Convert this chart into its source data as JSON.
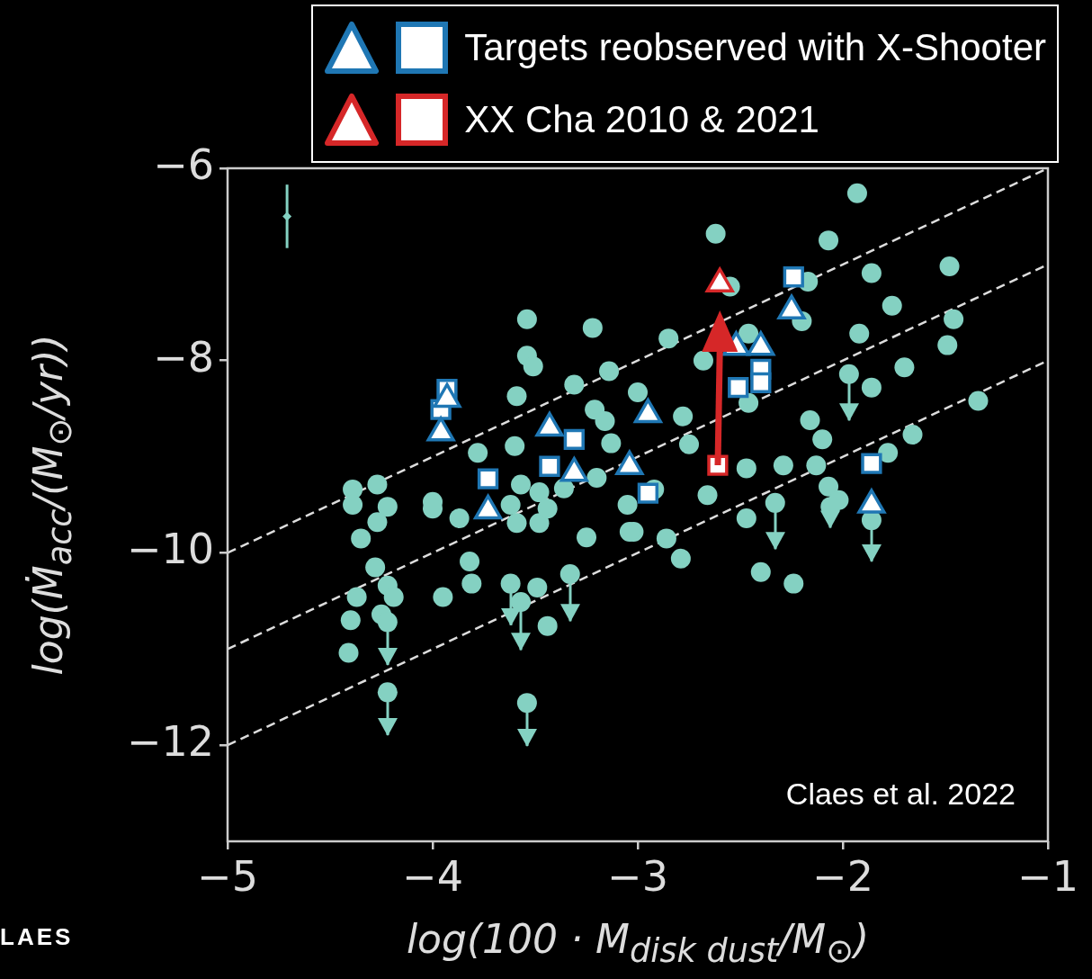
{
  "chart_data": {
    "type": "scatter",
    "xlabel": "log(100 · M$_{disk dust}$/M$_{⊙}$)",
    "ylabel": "log(Ṁ$_{acc}$/(M$_{⊙}$/yr))",
    "xlim": [
      -5,
      -1
    ],
    "xticks": [
      -5,
      -4,
      -3,
      -2,
      -1
    ],
    "ylim": [
      -13,
      -6
    ],
    "yticks": [
      -12,
      -10,
      -8,
      -6
    ],
    "grid": false,
    "legend": "top",
    "annotations": [
      "Claes et al. 2022",
      "LAES"
    ],
    "series": [
      {
        "type": "line",
        "color": "#dddddd",
        "line_style": "dashed",
        "x": [
          -5,
          -1
        ],
        "values": [
          -10,
          -6
        ]
      },
      {
        "type": "line",
        "color": "#dddddd",
        "line_style": "dashed",
        "x": [
          -5,
          -1
        ],
        "values": [
          -11,
          -7
        ]
      },
      {
        "type": "line",
        "color": "#dddddd",
        "line_style": "dashed",
        "x": [
          -5,
          -1
        ],
        "values": [
          -12,
          -8
        ]
      },
      {
        "color": "#84d1c2",
        "marker": "circle",
        "x": [
          -1.93,
          -2.62,
          -2.07,
          -1.48,
          -1.86,
          -2.17,
          -2.55,
          -1.76,
          -1.46,
          -1.92,
          -1.49,
          -2.2,
          -2.46,
          -2.68,
          -2.46,
          -1.7,
          -1.86,
          -1.34,
          -1.66,
          -2.16,
          -2.1,
          -1.78,
          -2.47,
          -2.29,
          -2.13,
          -2.07,
          -2.02,
          -2.66,
          -2.47,
          -3.02,
          -2.86,
          -2.79,
          -2.4,
          -2.24,
          -2.78,
          -2.75,
          -2.85,
          -3.0,
          -2.92,
          -3.54,
          -3.22,
          -3.54,
          -3.51,
          -3.31,
          -3.14,
          -3.59,
          -3.21,
          -3.16,
          -3.13,
          -3.78,
          -3.6,
          -4.39,
          -4.27,
          -3.57,
          -3.48,
          -3.36,
          -3.2,
          -4.0,
          -4.39,
          -4.22,
          -4.27,
          -4.35,
          -4.0,
          -3.87,
          -3.62,
          -3.59,
          -3.48,
          -3.44,
          -3.25,
          -3.05,
          -3.04,
          -4.28,
          -3.82,
          -3.81,
          -4.22,
          -4.19,
          -4.37,
          -3.95,
          -4.4,
          -4.25,
          -4.41,
          -3.49,
          -3.44
        ],
        "values": [
          -6.26,
          -6.68,
          -6.75,
          -7.02,
          -7.09,
          -7.18,
          -7.23,
          -7.43,
          -7.57,
          -7.72,
          -7.84,
          -7.59,
          -7.72,
          -8.0,
          -8.44,
          -8.07,
          -8.28,
          -8.42,
          -8.77,
          -8.62,
          -8.82,
          -8.96,
          -9.12,
          -9.09,
          -9.09,
          -9.31,
          -9.45,
          -9.4,
          -9.64,
          -9.78,
          -9.85,
          -10.06,
          -10.2,
          -10.32,
          -8.58,
          -8.87,
          -7.77,
          -8.33,
          -9.34,
          -7.57,
          -7.66,
          -7.95,
          -8.06,
          -8.25,
          -8.11,
          -8.37,
          -8.51,
          -8.63,
          -8.86,
          -8.96,
          -8.89,
          -9.34,
          -9.29,
          -9.29,
          -9.37,
          -9.33,
          -9.22,
          -9.47,
          -9.5,
          -9.52,
          -9.68,
          -9.85,
          -9.54,
          -9.64,
          -9.5,
          -9.69,
          -9.69,
          -9.54,
          -9.84,
          -9.5,
          -9.78,
          -10.15,
          -10.09,
          -10.32,
          -10.34,
          -10.46,
          -10.46,
          -10.46,
          -10.7,
          -10.64,
          -11.04,
          -10.36,
          -10.76
        ]
      },
      {
        "color": "#84d1c2",
        "marker": "circle",
        "x": [
          -1.97,
          -2.33,
          -2.06,
          -1.86,
          -4.22,
          -4.22,
          -3.54,
          -3.33,
          -3.62,
          -3.57
        ],
        "values": [
          -8.14,
          -9.48,
          -9.52,
          -9.66,
          -10.72,
          -11.45,
          -11.56,
          -10.22,
          -10.32,
          -10.51
        ],
        "errors": [
          [
            -8.61,
            -8.14
          ],
          [
            -9.95,
            -9.48
          ],
          [
            -9.73,
            -9.52
          ],
          [
            -10.08,
            -9.66
          ],
          [
            -11.16,
            -10.72
          ],
          [
            -11.89,
            -11.45
          ],
          [
            -12.0,
            -11.56
          ],
          [
            -10.7,
            -10.22
          ],
          [
            -10.74,
            -10.32
          ],
          [
            -11.0,
            -10.51
          ]
        ]
      },
      {
        "color": "#84d1c2",
        "marker": "diamond",
        "x": [
          -4.71
        ],
        "values": [
          -6.5
        ],
        "errors": [
          [
            -6.83,
            -6.17
          ]
        ]
      },
      {
        "name": "Targets reobserved with X-Shooter",
        "color": "#1f77b4",
        "marker": "square",
        "x": [
          -2.24,
          -3.93,
          -3.96,
          -3.73,
          -3.31,
          -3.43,
          -2.95,
          -2.51,
          -2.4,
          -2.4,
          -1.86
        ],
        "values": [
          -7.13,
          -8.3,
          -8.51,
          -9.23,
          -8.82,
          -9.1,
          -9.38,
          -8.28,
          -8.09,
          -8.23,
          -9.07
        ]
      },
      {
        "color": "#1f77b4",
        "marker": "triangle",
        "x": [
          -2.25,
          -3.93,
          -3.96,
          -3.73,
          -3.43,
          -3.31,
          -3.04,
          -2.95,
          -2.52,
          -2.4,
          -1.86
        ],
        "values": [
          -7.48,
          -8.4,
          -8.75,
          -9.56,
          -8.7,
          -9.17,
          -9.1,
          -8.56,
          -7.86,
          -7.86,
          -9.5
        ]
      },
      {
        "name": "XX Cha 2010 & 2021",
        "color": "#d62728",
        "marker": "square",
        "x": [
          -2.61
        ],
        "values": [
          -9.09
        ]
      },
      {
        "color": "#d62728",
        "marker": "triangle",
        "x": [
          -2.6
        ],
        "values": [
          -7.2
        ]
      }
    ]
  }
}
